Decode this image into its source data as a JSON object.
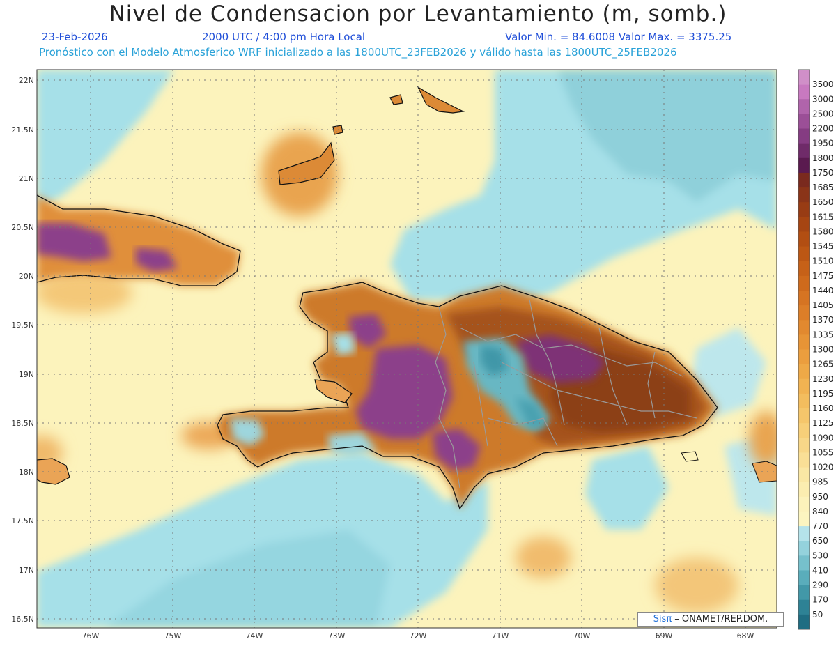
{
  "header": {
    "title": "Nivel de Condensacion por Levantamiento (m, somb.)",
    "date": "23-Feb-2026",
    "time": "2000 UTC / 4:00 pm Hora Local",
    "min_max": "Valor Min. = 84.6008   Valor Max. = 3375.25",
    "model_info": "Pronóstico con el Modelo Atmosferico WRF inicializado a las 1800UTC_23FEB2026 y válido hasta las  1800UTC_25FEB2026"
  },
  "map": {
    "lat_labels": [
      "22N",
      "21.5N",
      "21N",
      "20.5N",
      "20N",
      "19.5N",
      "19N",
      "18.5N",
      "18N",
      "17.5N",
      "17N",
      "16.5N"
    ],
    "lon_labels": [
      "76W",
      "75W",
      "74W",
      "73W",
      "72W",
      "71W",
      "70W",
      "69W",
      "68W"
    ]
  },
  "colorbar": {
    "labels": [
      "3500",
      "3000",
      "2500",
      "2200",
      "1950",
      "1800",
      "1750",
      "1685",
      "1650",
      "1615",
      "1580",
      "1545",
      "1510",
      "1475",
      "1440",
      "1405",
      "1370",
      "1335",
      "1300",
      "1265",
      "1230",
      "1195",
      "1160",
      "1125",
      "1090",
      "1055",
      "1020",
      "985",
      "950",
      "840",
      "770",
      "650",
      "530",
      "410",
      "290",
      "170",
      "50"
    ],
    "colors": [
      "#c879c0",
      "#b064ab",
      "#9b4f97",
      "#853c82",
      "#6f2b69",
      "#5a1a4f",
      "#7a2a1e",
      "#8a3418",
      "#983c14",
      "#a64512",
      "#b24e12",
      "#bc5714",
      "#c66118",
      "#ce6a1c",
      "#d67422",
      "#dc7e28",
      "#e2892f",
      "#e79436",
      "#eb9e3e",
      "#eea947",
      "#f1b352",
      "#f3bd5e",
      "#f5c66b",
      "#f7cf79",
      "#f8d788",
      "#f9df96",
      "#fae7a4",
      "#fbedb0",
      "#fcf2bb",
      "#fcf5c0",
      "#b5e3ea",
      "#94d2dc",
      "#76c0cc",
      "#5aadbb",
      "#4298a8",
      "#2e8295",
      "#1f6d82"
    ],
    "top_segment_color": "#d08fc8"
  },
  "credit": {
    "brand": "Sisπ",
    "text": " – ONAMET/REP.DOM."
  },
  "colors": {
    "ocean_yellow": "#fcf3bc",
    "ocean_cyan": "#a6e0e8",
    "teal": "#7cc8d2",
    "coast": "#111111",
    "borders": "#9a9a9a"
  }
}
